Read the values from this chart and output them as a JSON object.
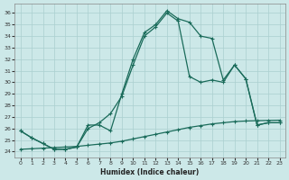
{
  "xlabel": "Humidex (Indice chaleur)",
  "xlim": [
    -0.5,
    23.5
  ],
  "ylim": [
    23.5,
    36.8
  ],
  "yticks": [
    24,
    25,
    26,
    27,
    28,
    29,
    30,
    31,
    32,
    33,
    34,
    35,
    36
  ],
  "xticks": [
    0,
    1,
    2,
    3,
    4,
    5,
    6,
    7,
    8,
    9,
    10,
    11,
    12,
    13,
    14,
    15,
    16,
    17,
    18,
    19,
    20,
    21,
    22,
    23
  ],
  "bg_color": "#cce8e8",
  "line_color": "#1a6b5a",
  "grid_color": "#aacfcf",
  "line1_x": [
    0,
    1,
    2,
    3,
    4,
    5,
    6,
    7,
    8,
    9,
    10,
    11,
    12,
    13,
    14,
    15,
    16,
    17,
    18,
    19,
    20,
    21,
    22,
    23
  ],
  "line1_y": [
    25.8,
    25.2,
    24.7,
    24.2,
    24.2,
    24.4,
    26.3,
    26.3,
    25.8,
    29.0,
    32.0,
    34.3,
    35.0,
    36.2,
    35.5,
    35.2,
    34.0,
    33.8,
    30.2,
    31.5,
    30.3,
    26.3,
    26.5,
    26.5
  ],
  "line2_x": [
    0,
    1,
    2,
    3,
    4,
    5,
    6,
    7,
    8,
    9,
    10,
    11,
    12,
    13,
    14,
    15,
    16,
    17,
    18,
    19,
    20,
    21,
    22,
    23
  ],
  "line2_y": [
    25.8,
    25.2,
    24.7,
    24.2,
    24.2,
    24.4,
    26.0,
    26.5,
    27.3,
    28.8,
    31.5,
    34.0,
    34.8,
    36.0,
    35.3,
    30.5,
    30.0,
    30.2,
    30.0,
    31.5,
    30.3,
    26.3,
    26.5,
    26.5
  ],
  "line3_x": [
    0,
    1,
    2,
    3,
    4,
    5,
    6,
    7,
    8,
    9,
    10,
    11,
    12,
    13,
    14,
    15,
    16,
    17,
    18,
    19,
    20,
    21,
    22,
    23
  ],
  "line3_y": [
    24.2,
    24.25,
    24.3,
    24.35,
    24.4,
    24.45,
    24.55,
    24.65,
    24.75,
    24.9,
    25.1,
    25.3,
    25.5,
    25.7,
    25.9,
    26.1,
    26.25,
    26.4,
    26.5,
    26.6,
    26.65,
    26.68,
    26.7,
    26.72
  ]
}
